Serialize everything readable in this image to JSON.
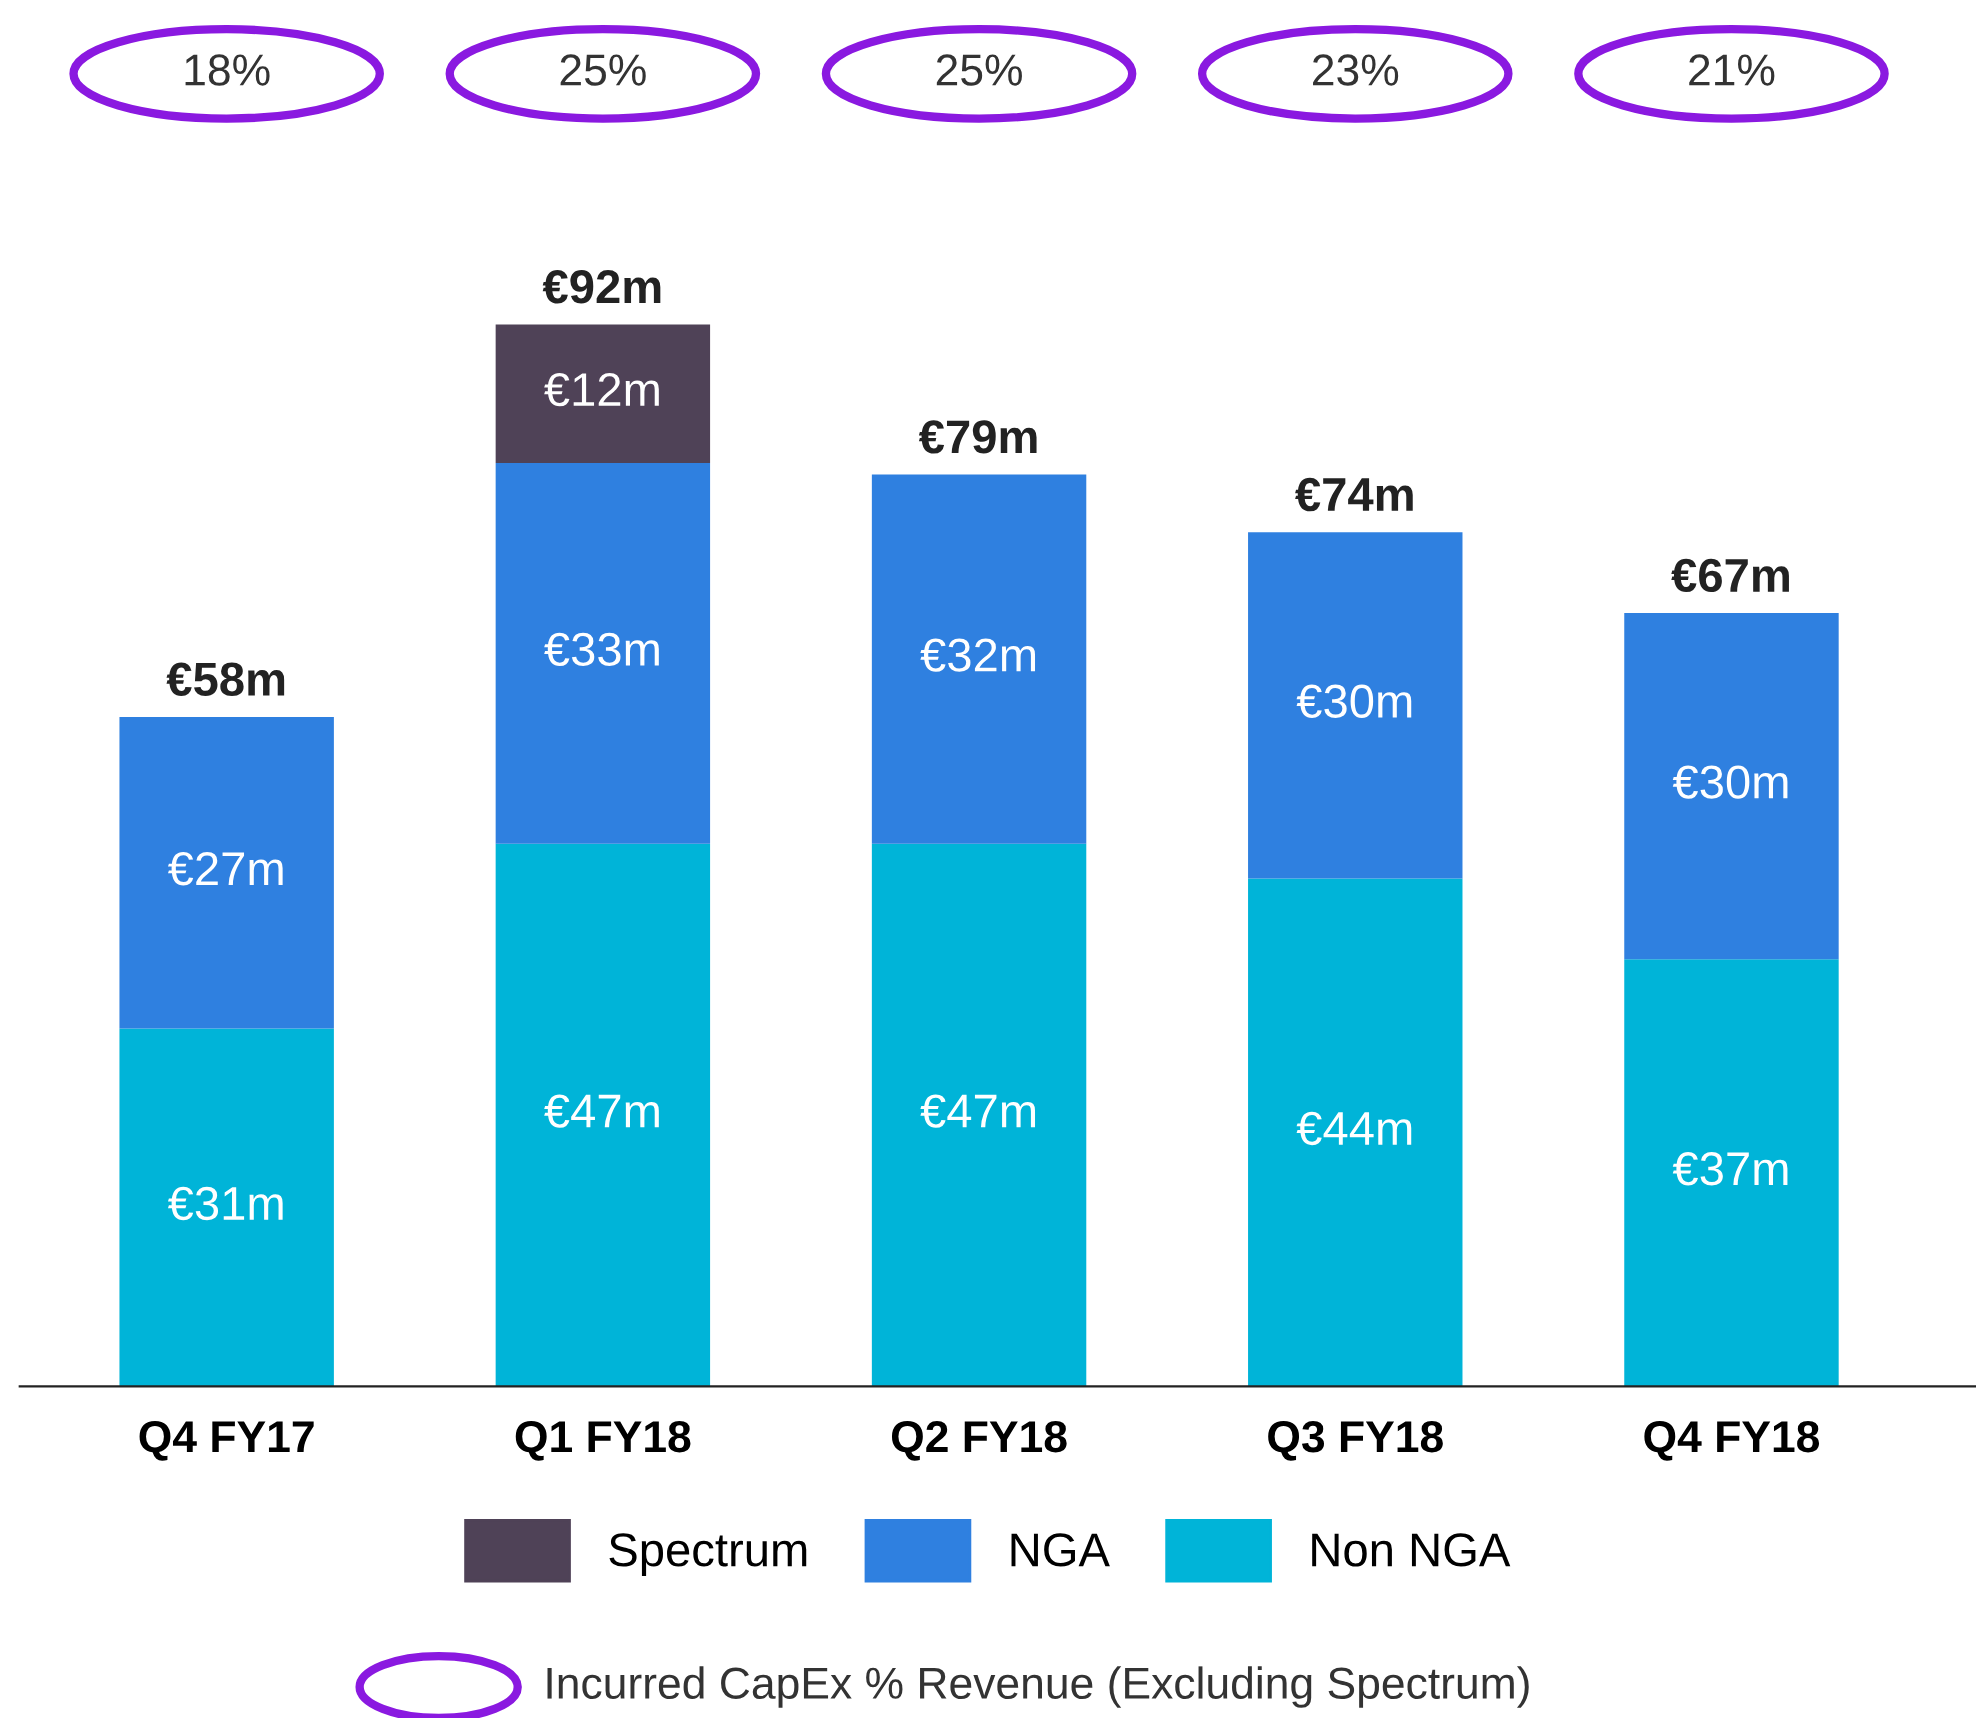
{
  "chart_data": {
    "type": "bar",
    "stacked": true,
    "legend": "bottom",
    "categories": [
      "Q4 FY17",
      "Q1 FY18",
      "Q2 FY18",
      "Q3 FY18",
      "Q4 FY18"
    ],
    "series": [
      {
        "name": "Non NGA",
        "color": "#00b4d8",
        "values": [
          31,
          47,
          47,
          44,
          37
        ],
        "value_labels": [
          "€31m",
          "€47m",
          "€47m",
          "€44m",
          "€37m"
        ]
      },
      {
        "name": "NGA",
        "color": "#2f80e0",
        "values": [
          27,
          33,
          32,
          30,
          30
        ],
        "value_labels": [
          "€27m",
          "€33m",
          "€32m",
          "€30m",
          "€30m"
        ]
      },
      {
        "name": "Spectrum",
        "color": "#4f4257",
        "values": [
          null,
          12,
          null,
          null,
          null
        ],
        "value_labels": [
          null,
          "€12m",
          null,
          null,
          null
        ]
      }
    ],
    "totals": [
      "€58m",
      "€92m",
      "€79m",
      "€74m",
      "€67m"
    ],
    "annotations": [
      "18%",
      "25%",
      "25%",
      "23%",
      "21%",
      "Incurred CapEx % Revenue (Excluding Spectrum)"
    ]
  }
}
